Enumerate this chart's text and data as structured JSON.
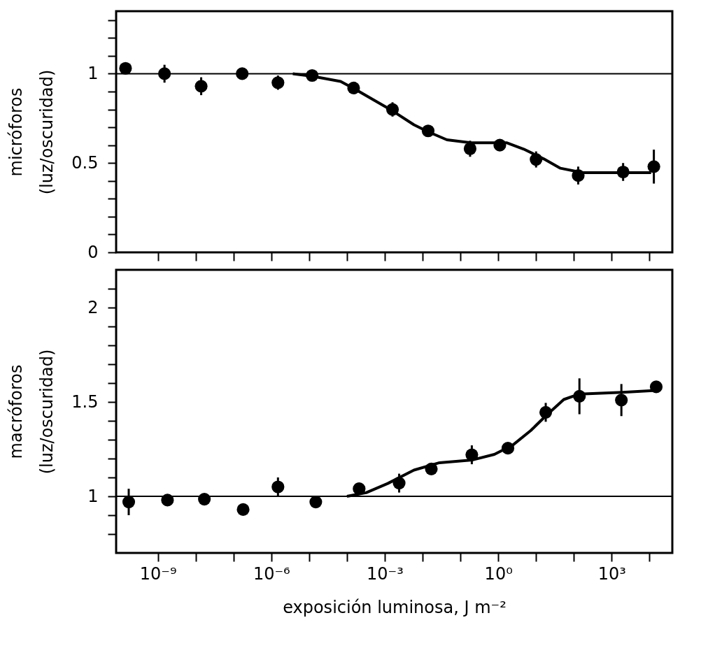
{
  "chart_data": [
    {
      "type": "scatter",
      "ylabel": "micróforos\n(luz/oscuridad)",
      "tick_labels": "y",
      "marker": "circle",
      "grid": false,
      "xlim": [
        7.9e-11,
        40000
      ],
      "log": "x",
      "xticks": [
        {
          "value": 1e-09,
          "label": null
        },
        {
          "value": 1e-08,
          "label": null
        },
        {
          "value": 1e-07,
          "label": null
        },
        {
          "value": 1e-06,
          "label": null
        },
        {
          "value": 1e-05,
          "label": null
        },
        {
          "value": 0.0001,
          "label": null
        },
        {
          "value": 0.001,
          "label": null
        },
        {
          "value": 0.01,
          "label": null
        },
        {
          "value": 0.1,
          "label": null
        },
        {
          "value": 1,
          "label": null
        },
        {
          "value": 10,
          "label": null
        },
        {
          "value": 100,
          "label": null
        },
        {
          "value": 1000,
          "label": null
        },
        {
          "value": 10000,
          "label": null
        }
      ],
      "ylim": [
        0,
        1.35
      ],
      "yticks": [
        0,
        {
          "value": 0.1,
          "label": null
        },
        {
          "value": 0.2,
          "label": null
        },
        {
          "value": 0.3,
          "label": null
        },
        {
          "value": 0.4,
          "label": null
        },
        0.5,
        {
          "value": 0.6,
          "label": null
        },
        {
          "value": 0.7,
          "label": null
        },
        {
          "value": 0.8,
          "label": null
        },
        {
          "value": 0.9,
          "label": null
        },
        1,
        {
          "value": 1.1,
          "label": null
        },
        {
          "value": 1.2,
          "label": null
        },
        {
          "value": 1.3,
          "label": null
        }
      ],
      "ref_lines": [
        {
          "axis": "y",
          "value": 1,
          "color": "#000000"
        }
      ],
      "series": [
        {
          "type": "scatter",
          "color": "#000000",
          "x": [
            1.4e-10,
            1.5e-09,
            1.4e-08,
            1.7e-07,
            1.5e-06,
            1.2e-05,
            0.00015,
            0.0016,
            0.014,
            0.18,
            1.1,
            10,
            130,
            2000,
            13000
          ],
          "values": [
            1.03,
            1.0,
            0.93,
            1.0,
            0.95,
            0.99,
            0.92,
            0.8,
            0.68,
            0.58,
            0.6,
            0.52,
            0.43,
            0.45,
            0.48
          ],
          "errors": [
            null,
            0.05,
            0.05,
            null,
            0.04,
            null,
            null,
            0.04,
            null,
            0.045,
            null,
            0.045,
            0.05,
            0.05,
            0.095
          ]
        },
        {
          "type": "line",
          "color": "#000000",
          "marker": "none",
          "line_style": "solid",
          "x": [
            3.7e-06,
            1.2e-05,
            6.8e-05,
            0.00015,
            0.0005,
            0.0016,
            0.0059,
            0.014,
            0.044,
            0.19,
            1.7,
            4.7,
            16,
            44,
            170,
            11000
          ],
          "values": [
            1.0,
            0.986,
            0.957,
            0.918,
            0.854,
            0.792,
            0.714,
            0.675,
            0.63,
            0.613,
            0.613,
            0.578,
            0.523,
            0.471,
            0.446,
            0.446
          ]
        }
      ]
    },
    {
      "type": "scatter",
      "ylabel": "macróforos\n(luz/oscuridad)",
      "xlabel": "exposición  luminosa,  J m⁻²",
      "marker": "circle",
      "grid": false,
      "xlim": [
        7.9e-11,
        40000
      ],
      "log": "x",
      "xticks": [
        {
          "value": 1e-09,
          "label": "10⁻⁹"
        },
        {
          "value": 1e-08,
          "label": null
        },
        {
          "value": 1e-07,
          "label": null
        },
        {
          "value": 1e-06,
          "label": "10⁻⁶"
        },
        {
          "value": 1e-05,
          "label": null
        },
        {
          "value": 0.0001,
          "label": null
        },
        {
          "value": 0.001,
          "label": "10⁻³"
        },
        {
          "value": 0.01,
          "label": null
        },
        {
          "value": 0.1,
          "label": null
        },
        {
          "value": 1,
          "label": "10⁰"
        },
        {
          "value": 10,
          "label": null
        },
        {
          "value": 100,
          "label": null
        },
        {
          "value": 1000,
          "label": "10³"
        },
        {
          "value": 10000,
          "label": null
        }
      ],
      "ylim": [
        0.7,
        2.2
      ],
      "yticks": [
        {
          "value": 0.8,
          "label": null
        },
        {
          "value": 0.9,
          "label": null
        },
        1,
        {
          "value": 1.1,
          "label": null
        },
        {
          "value": 1.2,
          "label": null
        },
        {
          "value": 1.3,
          "label": null
        },
        {
          "value": 1.4,
          "label": null
        },
        1.5,
        {
          "value": 1.6,
          "label": null
        },
        {
          "value": 1.7,
          "label": null
        },
        {
          "value": 1.8,
          "label": null
        },
        {
          "value": 1.9,
          "label": null
        },
        2,
        {
          "value": 2.1,
          "label": null
        }
      ],
      "ref_lines": [
        {
          "axis": "y",
          "value": 1,
          "color": "#000000"
        }
      ],
      "series": [
        {
          "type": "scatter",
          "color": "#000000",
          "x": [
            1.7e-10,
            1.8e-09,
            1.7e-08,
            1.8e-07,
            1.5e-06,
            1.5e-05,
            0.00021,
            0.0024,
            0.017,
            0.2,
            1.8,
            18,
            140,
            1800,
            15000
          ],
          "values": [
            0.97,
            0.98,
            0.985,
            0.93,
            1.05,
            0.97,
            1.04,
            1.07,
            1.145,
            1.22,
            1.255,
            1.445,
            1.53,
            1.51,
            1.58
          ],
          "errors": [
            0.07,
            null,
            null,
            null,
            0.05,
            null,
            null,
            0.05,
            null,
            0.05,
            null,
            0.05,
            0.095,
            0.085,
            null
          ]
        },
        {
          "type": "line",
          "color": "#000000",
          "marker": "none",
          "line_style": "solid",
          "x": [
            0.0001,
            0.00032,
            0.0012,
            0.0059,
            0.028,
            0.21,
            0.79,
            2.4,
            7.2,
            18,
            54,
            140,
            1900,
            15000
          ],
          "values": [
            1.0,
            1.019,
            1.068,
            1.139,
            1.178,
            1.193,
            1.222,
            1.271,
            1.348,
            1.426,
            1.513,
            1.542,
            1.551,
            1.561
          ]
        }
      ]
    }
  ]
}
